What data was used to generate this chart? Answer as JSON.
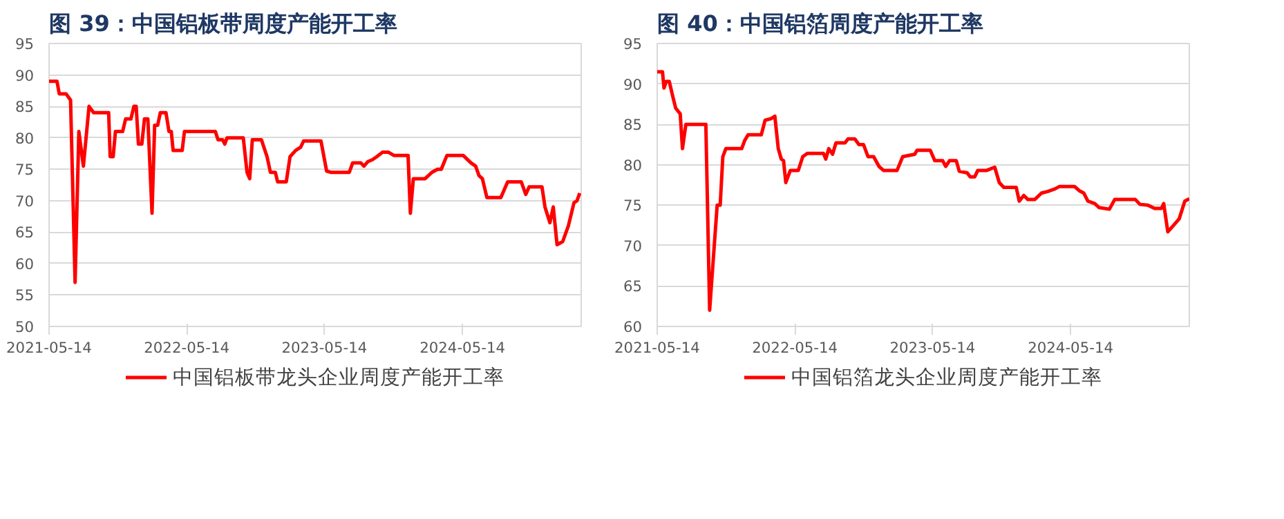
{
  "chart_data": [
    {
      "type": "line",
      "title": "图 39：中国铝板带周度产能开工率",
      "xlim": [
        "2021-05-14",
        "2025-03-25"
      ],
      "xticks": [
        "2021-05-14",
        "2022-05-14",
        "2023-05-14",
        "2024-05-14"
      ],
      "ylim": [
        50,
        95
      ],
      "yticks": [
        50,
        55,
        60,
        65,
        70,
        75,
        80,
        85,
        90,
        95
      ],
      "grid": "y",
      "legend": "bottom",
      "marker": "none",
      "line_style": "solid",
      "x": [
        "2021-05-14",
        "2021-06-04",
        "2021-06-10",
        "2021-06-28",
        "2021-07-10",
        "2021-07-22",
        "2021-08-01",
        "2021-08-13",
        "2021-08-28",
        "2021-09-09",
        "2021-10-19",
        "2021-10-23",
        "2021-10-31",
        "2021-11-06",
        "2021-11-25",
        "2021-12-03",
        "2021-12-17",
        "2021-12-25",
        "2021-12-31",
        "2022-01-06",
        "2022-01-15",
        "2022-01-22",
        "2022-01-31",
        "2022-02-11",
        "2022-02-18",
        "2022-02-26",
        "2022-03-05",
        "2022-03-20",
        "2022-03-28",
        "2022-04-03",
        "2022-04-08",
        "2022-05-02",
        "2022-05-08",
        "2022-07-29",
        "2022-08-05",
        "2022-08-17",
        "2022-08-23",
        "2022-08-29",
        "2022-10-11",
        "2022-10-21",
        "2022-10-28",
        "2022-11-04",
        "2022-11-28",
        "2022-12-13",
        "2022-12-22",
        "2023-01-04",
        "2023-01-10",
        "2023-02-02",
        "2023-02-12",
        "2023-02-27",
        "2023-03-12",
        "2023-03-20",
        "2023-05-05",
        "2023-05-20",
        "2023-06-01",
        "2023-07-19",
        "2023-07-28",
        "2023-08-19",
        "2023-08-27",
        "2023-09-06",
        "2023-09-18",
        "2023-09-30",
        "2023-10-15",
        "2023-10-31",
        "2023-11-14",
        "2023-12-22",
        "2023-12-28",
        "2024-01-05",
        "2024-02-05",
        "2024-02-23",
        "2024-03-09",
        "2024-03-19",
        "2024-04-03",
        "2024-05-16",
        "2024-06-06",
        "2024-06-18",
        "2024-06-27",
        "2024-07-06",
        "2024-07-18",
        "2024-08-24",
        "2024-09-11",
        "2024-10-17",
        "2024-10-29",
        "2024-11-07",
        "2024-12-11",
        "2024-12-19",
        "2025-01-01",
        "2025-01-10",
        "2025-01-20",
        "2025-02-04",
        "2025-02-19",
        "2025-03-06",
        "2025-03-14",
        "2025-03-21"
      ],
      "series": [
        {
          "name": "中国铝板带龙头企业周度产能开工率",
          "color": "#ff0000",
          "values": [
            89,
            89,
            87,
            87,
            86,
            57,
            81,
            75.5,
            85,
            84,
            84,
            77,
            77,
            81,
            81,
            83,
            83,
            85,
            85,
            79,
            79,
            83,
            83,
            68,
            82,
            82,
            84,
            84,
            81,
            81,
            78,
            78,
            81,
            81,
            79.7,
            79.7,
            79,
            80,
            80,
            74.5,
            73.5,
            79.7,
            79.7,
            77,
            74.5,
            74.5,
            73,
            73,
            77,
            78,
            78.5,
            79.5,
            79.5,
            74.7,
            74.5,
            74.5,
            76,
            76,
            75.5,
            76.2,
            76.5,
            77,
            77.7,
            77.7,
            77.2,
            77.2,
            68,
            73.5,
            73.5,
            74.5,
            75,
            75,
            77.2,
            77.2,
            76,
            75.5,
            74,
            73.5,
            70.5,
            70.5,
            73,
            73,
            71,
            72.2,
            72.2,
            69,
            66.5,
            69,
            63,
            63.5,
            66,
            69.7,
            70,
            71.2
          ]
        }
      ]
    },
    {
      "type": "line",
      "title": "图 40：中国铝箔周度产能开工率",
      "xlim": [
        "2021-05-14",
        "2025-03-25"
      ],
      "xticks": [
        "2021-05-14",
        "2022-05-14",
        "2023-05-14",
        "2024-05-14"
      ],
      "ylim": [
        60,
        95
      ],
      "yticks": [
        60,
        65,
        70,
        75,
        80,
        85,
        90,
        95
      ],
      "grid": "y",
      "legend": "bottom",
      "marker": "none",
      "line_style": "solid",
      "x": [
        "2021-05-14",
        "2021-05-28",
        "2021-06-01",
        "2021-06-07",
        "2021-06-15",
        "2021-06-24",
        "2021-07-02",
        "2021-07-14",
        "2021-07-20",
        "2021-07-29",
        "2021-09-20",
        "2021-09-30",
        "2021-10-20",
        "2021-10-28",
        "2021-11-04",
        "2021-11-12",
        "2021-12-24",
        "2022-01-01",
        "2022-01-10",
        "2022-02-14",
        "2022-02-24",
        "2022-03-12",
        "2022-03-22",
        "2022-03-31",
        "2022-04-08",
        "2022-04-14",
        "2022-04-20",
        "2022-05-02",
        "2022-05-23",
        "2022-06-04",
        "2022-06-16",
        "2022-07-29",
        "2022-08-04",
        "2022-08-12",
        "2022-08-22",
        "2022-08-31",
        "2022-09-24",
        "2022-10-02",
        "2022-10-20",
        "2022-10-31",
        "2022-11-12",
        "2022-11-24",
        "2022-12-09",
        "2022-12-23",
        "2023-01-04",
        "2023-02-09",
        "2023-02-24",
        "2023-03-28",
        "2023-04-03",
        "2023-05-08",
        "2023-05-20",
        "2023-06-10",
        "2023-06-18",
        "2023-06-28",
        "2023-07-16",
        "2023-07-24",
        "2023-08-14",
        "2023-08-22",
        "2023-09-03",
        "2023-09-11",
        "2023-10-05",
        "2023-10-26",
        "2023-11-07",
        "2023-11-19",
        "2023-12-22",
        "2023-12-30",
        "2024-01-11",
        "2024-01-22",
        "2024-02-09",
        "2024-02-27",
        "2024-03-15",
        "2024-04-02",
        "2024-04-14",
        "2024-05-25",
        "2024-06-06",
        "2024-06-18",
        "2024-06-29",
        "2024-07-17",
        "2024-07-29",
        "2024-08-25",
        "2024-09-08",
        "2024-11-02",
        "2024-11-14",
        "2024-12-05",
        "2024-12-23",
        "2025-01-10",
        "2025-01-16",
        "2025-01-27",
        "2025-02-11",
        "2025-02-26",
        "2025-03-13",
        "2025-03-25"
      ],
      "series": [
        {
          "name": "中国铝箔龙头企业周度产能开工率",
          "color": "#ff0000",
          "values": [
            91.5,
            91.5,
            89.5,
            90.3,
            90.3,
            88.5,
            87,
            86.3,
            82,
            85,
            85,
            62,
            75,
            75,
            81,
            82,
            82,
            83,
            83.7,
            83.7,
            85.5,
            85.7,
            86,
            82,
            80.7,
            80.5,
            77.8,
            79.3,
            79.3,
            81,
            81.4,
            81.4,
            80.7,
            82,
            81.3,
            82.7,
            82.7,
            83.2,
            83.2,
            82.5,
            82.5,
            81,
            81,
            79.8,
            79.3,
            79.3,
            81,
            81.3,
            81.8,
            81.8,
            80.5,
            80.5,
            79.8,
            80.5,
            80.5,
            79.2,
            79,
            78.5,
            78.5,
            79.3,
            79.3,
            79.7,
            77.8,
            77.2,
            77.2,
            75.5,
            76.2,
            75.7,
            75.7,
            76.5,
            76.7,
            77,
            77.3,
            77.3,
            76.8,
            76.5,
            75.5,
            75.2,
            74.7,
            74.5,
            75.7,
            75.7,
            75.1,
            75,
            74.6,
            74.6,
            75.2,
            71.7,
            72.5,
            73.3,
            75.5,
            75.8
          ]
        }
      ]
    }
  ]
}
